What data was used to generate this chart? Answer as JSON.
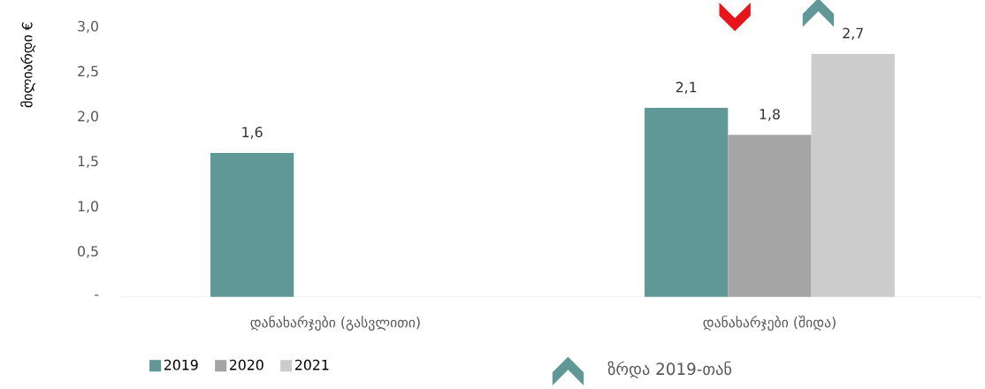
{
  "chart_data": {
    "type": "bar",
    "ylabel": "მილიარდი €",
    "categories": [
      "დანახარჯები (გასვლითი)",
      "დანახარჯები (შიდა)"
    ],
    "series": [
      {
        "name": "2019",
        "color": "#5f9896",
        "values": [
          1.6,
          2.1
        ],
        "value_labels": [
          "1,6",
          "2,1"
        ]
      },
      {
        "name": "2020",
        "color": "#a5a5a5",
        "values": [
          null,
          1.8
        ],
        "value_labels": [
          null,
          "1,8"
        ]
      },
      {
        "name": "2021",
        "color": "#cccccc",
        "values": [
          null,
          2.7
        ],
        "value_labels": [
          null,
          "2,7"
        ]
      }
    ],
    "ylim": [
      0,
      3.0
    ],
    "yticks": [
      {
        "value": 0,
        "label": "-"
      },
      {
        "value": 0.5,
        "label": "0,5"
      },
      {
        "value": 1.0,
        "label": "1,0"
      },
      {
        "value": 1.5,
        "label": "1,5"
      },
      {
        "value": 2.0,
        "label": "2,0"
      },
      {
        "value": 2.5,
        "label": "2,5"
      },
      {
        "value": 3.0,
        "label": "3,0"
      }
    ],
    "grid": false,
    "legend": "bottom",
    "annotations": [
      "ზრდა 2019-თან"
    ]
  }
}
